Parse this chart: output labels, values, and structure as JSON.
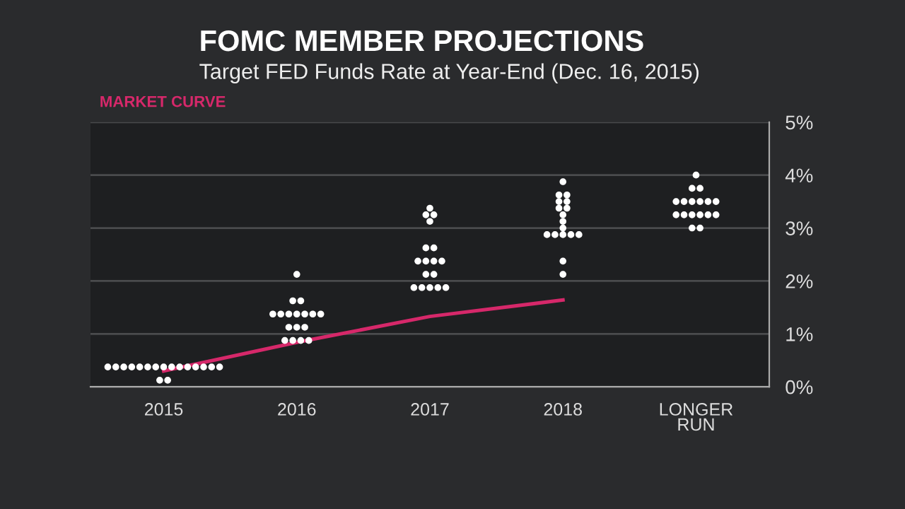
{
  "chart_data": {
    "type": "scatter",
    "title": "FOMC MEMBER PROJECTIONS",
    "subtitle": "Target FED Funds Rate at Year-End (Dec. 16, 2015)",
    "xlim": [
      2014.45,
      2019.55
    ],
    "xticks": [
      2015,
      2016,
      2017,
      2018,
      {
        "value": 2019,
        "label": "LONGER\nRUN"
      }
    ],
    "series": [
      {
        "color": "#ffffff",
        "x": [
          2014.58,
          2014.64,
          2014.7,
          2014.76,
          2014.82,
          2014.88,
          2014.94,
          2015,
          2015.06,
          2015.12,
          2015.18,
          2015.24,
          2015.3,
          2015.36,
          2015.42,
          2014.97,
          2015.03,
          2015.91,
          2015.97,
          2016.03,
          2016.09,
          2015.94,
          2016,
          2016.06,
          2015.82,
          2015.88,
          2015.94,
          2016,
          2016.06,
          2016.12,
          2016.18,
          2015.97,
          2016.03,
          2016,
          2016.88,
          2016.94,
          2017,
          2017.06,
          2017.12,
          2016.97,
          2017.03,
          2016.91,
          2016.97,
          2017.03,
          2017.09,
          2016.97,
          2017.03,
          2017,
          2016.97,
          2017.03,
          2017,
          2018,
          2018,
          2017.88,
          2017.94,
          2018,
          2018.06,
          2018.12,
          2018,
          2018,
          2018,
          2017.97,
          2018.03,
          2017.97,
          2018.03,
          2017.97,
          2018.03,
          2018,
          2018.97,
          2019.03,
          2018.85,
          2018.91,
          2018.97,
          2019.03,
          2019.09,
          2019.15,
          2018.85,
          2018.91,
          2018.97,
          2019.03,
          2019.09,
          2019.15,
          2018.97,
          2019.03,
          2019
        ],
        "values": [
          0.375,
          0.375,
          0.375,
          0.375,
          0.375,
          0.375,
          0.375,
          0.375,
          0.375,
          0.375,
          0.375,
          0.375,
          0.375,
          0.375,
          0.375,
          0.125,
          0.125,
          0.875,
          0.875,
          0.875,
          0.875,
          1.125,
          1.125,
          1.125,
          1.375,
          1.375,
          1.375,
          1.375,
          1.375,
          1.375,
          1.375,
          1.625,
          1.625,
          2.125,
          1.875,
          1.875,
          1.875,
          1.875,
          1.875,
          2.125,
          2.125,
          2.375,
          2.375,
          2.375,
          2.375,
          2.625,
          2.625,
          3.125,
          3.25,
          3.25,
          3.375,
          2.125,
          2.375,
          2.875,
          2.875,
          2.875,
          2.875,
          2.875,
          3.0,
          3.125,
          3.25,
          3.375,
          3.375,
          3.5,
          3.5,
          3.625,
          3.625,
          3.875,
          3.0,
          3.0,
          3.25,
          3.25,
          3.25,
          3.25,
          3.25,
          3.25,
          3.5,
          3.5,
          3.5,
          3.5,
          3.5,
          3.5,
          3.75,
          3.75,
          4.0
        ]
      },
      {
        "type": "line",
        "name": "MARKET CURVE",
        "color": "#d6286a",
        "x": [
          2015,
          2016,
          2017,
          2018
        ],
        "values": [
          0.3,
          0.84,
          1.33,
          1.64
        ]
      }
    ],
    "ylim": [
      0,
      5
    ],
    "yticks": [
      {
        "value": 0,
        "label": "0%"
      },
      {
        "value": 1,
        "label": "1%"
      },
      {
        "value": 2,
        "label": "2%"
      },
      {
        "value": 3,
        "label": "3%"
      },
      {
        "value": 4,
        "label": "4%"
      },
      {
        "value": 5,
        "label": "5%"
      }
    ],
    "grid": "y",
    "legend": false
  }
}
